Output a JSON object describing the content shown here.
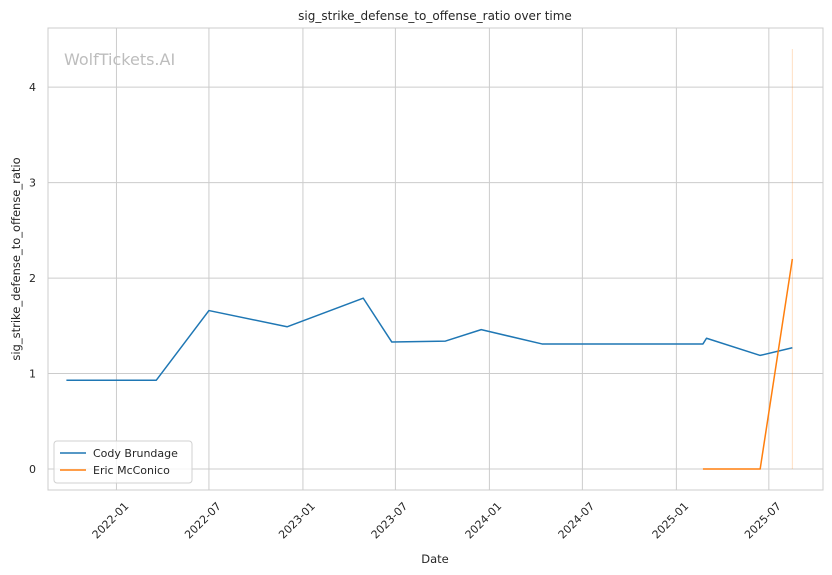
{
  "chart_data": {
    "type": "line",
    "title": "sig_strike_defense_to_offense_ratio over time",
    "xlabel": "Date",
    "ylabel": "sig_strike_defense_to_offense_ratio",
    "watermark": "WolfTickets.AI",
    "xlim": [
      "2021-08-20",
      "2025-10-15"
    ],
    "ylim": [
      -0.22,
      4.62
    ],
    "x_ticks": [
      "2022-01",
      "2022-07",
      "2023-01",
      "2023-07",
      "2024-01",
      "2024-07",
      "2025-01",
      "2025-07"
    ],
    "x_tick_dates": [
      "2022-01-01",
      "2022-07-01",
      "2023-01-01",
      "2023-07-01",
      "2024-01-01",
      "2024-07-01",
      "2025-01-01",
      "2025-07-01"
    ],
    "y_ticks": [
      0,
      1,
      2,
      3,
      4
    ],
    "grid": true,
    "legend_position": "bottom-left",
    "series": [
      {
        "name": "Cody Brundage",
        "color": "#1f77b4",
        "points": [
          {
            "x": "2021-09-25",
            "y": 0.93
          },
          {
            "x": "2022-03-20",
            "y": 0.93
          },
          {
            "x": "2022-07-01",
            "y": 1.66
          },
          {
            "x": "2022-12-01",
            "y": 1.49
          },
          {
            "x": "2023-04-29",
            "y": 1.79
          },
          {
            "x": "2023-06-24",
            "y": 1.33
          },
          {
            "x": "2023-10-07",
            "y": 1.34
          },
          {
            "x": "2023-12-16",
            "y": 1.46
          },
          {
            "x": "2024-04-13",
            "y": 1.31
          },
          {
            "x": "2025-02-22",
            "y": 1.31
          },
          {
            "x": "2025-03-01",
            "y": 1.37
          },
          {
            "x": "2025-06-14",
            "y": 1.19
          },
          {
            "x": "2025-08-16",
            "y": 1.27
          }
        ]
      },
      {
        "name": "Eric McConico",
        "color": "#ff7f0e",
        "points": [
          {
            "x": "2025-02-22",
            "y": 0.0
          },
          {
            "x": "2025-06-14",
            "y": 0.0
          },
          {
            "x": "2025-08-16",
            "y": 2.2
          }
        ]
      }
    ],
    "reference_lines": [
      {
        "x": "2025-08-16",
        "y_from": 0.0,
        "y_to": 4.4,
        "color": "#ff7f0e"
      }
    ]
  }
}
